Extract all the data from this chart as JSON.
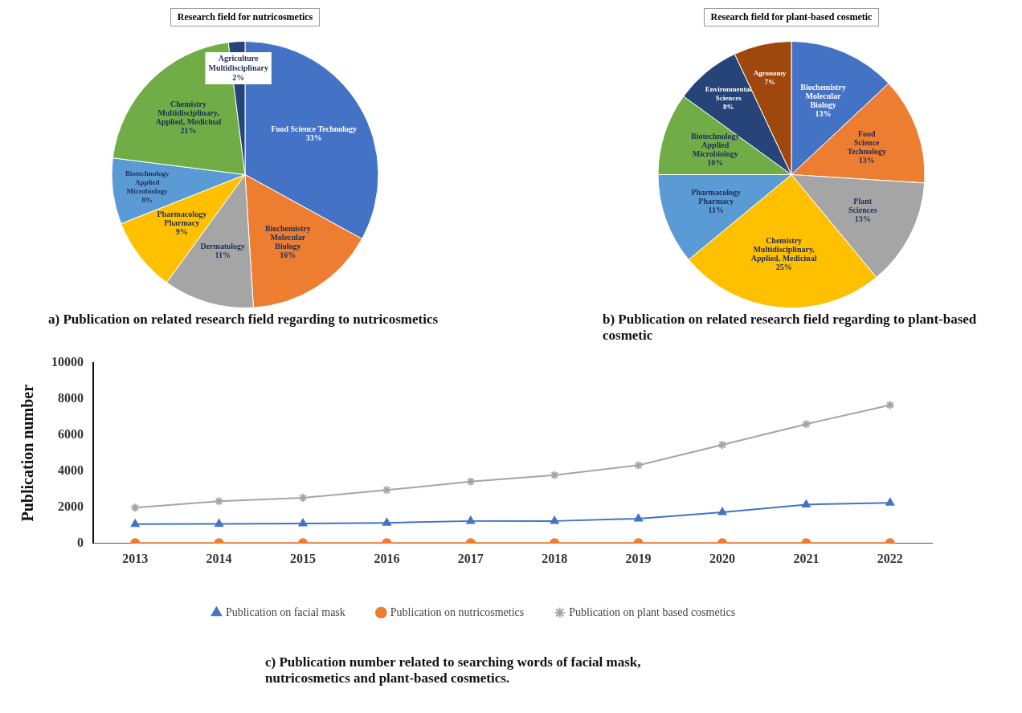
{
  "chart_data": [
    {
      "type": "pie",
      "title": "Research field for nutricosmetics",
      "categories": [
        "Food Science Technology",
        "Biochemistry Molecular Biology",
        "Dermatology",
        "Pharmacology Pharmacy",
        "Biotechnology Applied Microbiology",
        "Chemistry Multidisciplinary, Applied, Medicinal",
        "Agriculture Multidisciplinary"
      ],
      "values": [
        33,
        16,
        11,
        9,
        8,
        21,
        2
      ],
      "value_labels": [
        "33%",
        "16%",
        "11%",
        "9%",
        "8%",
        "21%",
        "2%"
      ],
      "colors": [
        "#4472c4",
        "#ed7d31",
        "#a5a5a5",
        "#ffc000",
        "#5b9bd5",
        "#70ad47",
        "#264478"
      ],
      "legend": false,
      "annotations": [
        "a) Publication on related research field regarding to nutricosmetics"
      ]
    },
    {
      "type": "pie",
      "title": "Research field for plant-based cosmetic",
      "categories": [
        "Biochemistry Molecular Biology",
        "Food Science Technology",
        "Plant Sciences",
        "Chemistry Multidisciplinary, Applied, Medicinal",
        "Pharmacology Pharmacy",
        "Biotechnology Applied Microbiology",
        "Environmental Sciences",
        "Agronomy"
      ],
      "values": [
        13,
        13,
        13,
        25,
        11,
        10,
        8,
        7
      ],
      "value_labels": [
        "13%",
        "13%",
        "13%",
        "25%",
        "11%",
        "10%",
        "8%",
        "7%"
      ],
      "colors": [
        "#4472c4",
        "#ed7d31",
        "#a5a5a5",
        "#ffc000",
        "#5b9bd5",
        "#70ad47",
        "#264478",
        "#9e480e"
      ],
      "legend": false,
      "annotations": [
        "b) Publication on related research field regarding to plant-based cosmetic"
      ]
    },
    {
      "type": "line",
      "ylabel": "Publication number",
      "categories": [
        "2013",
        "2014",
        "2015",
        "2016",
        "2017",
        "2018",
        "2019",
        "2020",
        "2021",
        "2022"
      ],
      "ylim": [
        0,
        10000
      ],
      "yticks": [
        0,
        2000,
        4000,
        6000,
        8000,
        10000
      ],
      "grid": false,
      "legend": "bottom",
      "series": [
        {
          "name": "Publication on facial mask",
          "color": "#4472c4",
          "marker": "triangle",
          "values": [
            1070,
            1080,
            1100,
            1140,
            1240,
            1240,
            1370,
            1720,
            2150,
            2250
          ]
        },
        {
          "name": "Publication on nutricosmetics",
          "color": "#ed7d31",
          "marker": "circle",
          "values": [
            20,
            20,
            20,
            20,
            20,
            20,
            20,
            20,
            20,
            20
          ]
        },
        {
          "name": "Publication on plant based cosmetics",
          "color": "#a5a5a5",
          "marker": "cross",
          "values": [
            1980,
            2330,
            2520,
            2950,
            3420,
            3780,
            4320,
            5450,
            6600,
            7650
          ]
        }
      ],
      "annotations": [
        "c) Publication number related to searching words of facial mask, nutricosmetics and plant-based cosmetics."
      ]
    }
  ]
}
